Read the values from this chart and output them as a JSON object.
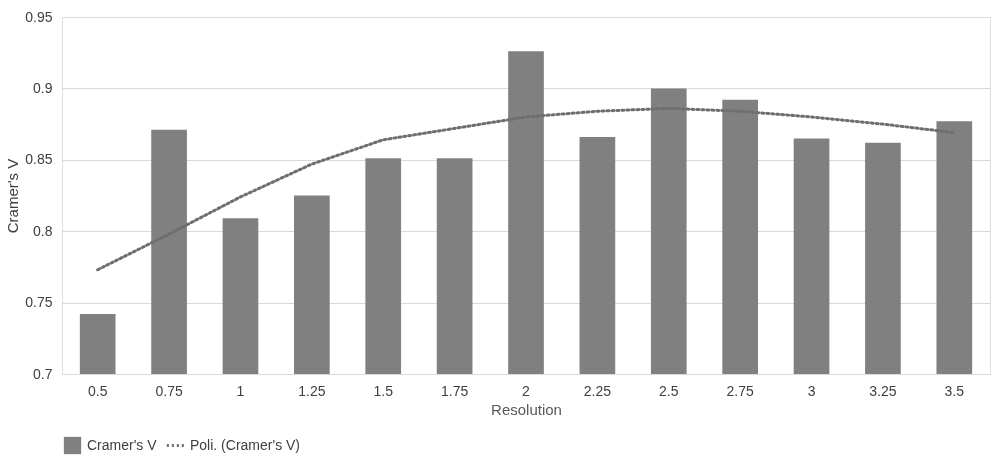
{
  "chart_data": {
    "type": "bar",
    "xlabel": "Resolution",
    "ylabel": "Cramer's V",
    "categories": [
      "0.5",
      "0.75",
      "1",
      "1.25",
      "1.5",
      "1.75",
      "2",
      "2.25",
      "2.5",
      "2.75",
      "3",
      "3.25",
      "3.5"
    ],
    "series": [
      {
        "name": "Cramer's V",
        "color": "#808080",
        "values": [
          0.742,
          0.871,
          0.809,
          0.825,
          0.851,
          0.851,
          0.926,
          0.866,
          0.9,
          0.892,
          0.865,
          0.862,
          0.877
        ]
      },
      {
        "name": "Poli. (Cramer's V)",
        "type": "line",
        "color": "#6e6e6e",
        "line_style": "dotted",
        "values": [
          0.773,
          0.798,
          0.824,
          0.847,
          0.864,
          0.872,
          0.88,
          0.884,
          0.886,
          0.884,
          0.88,
          0.875,
          0.869
        ]
      }
    ],
    "ylim": [
      0.7,
      0.95
    ],
    "yticks": [
      0.7,
      0.75,
      0.8,
      0.85,
      0.9,
      0.95
    ],
    "grid": "y",
    "legend": "bottom"
  }
}
